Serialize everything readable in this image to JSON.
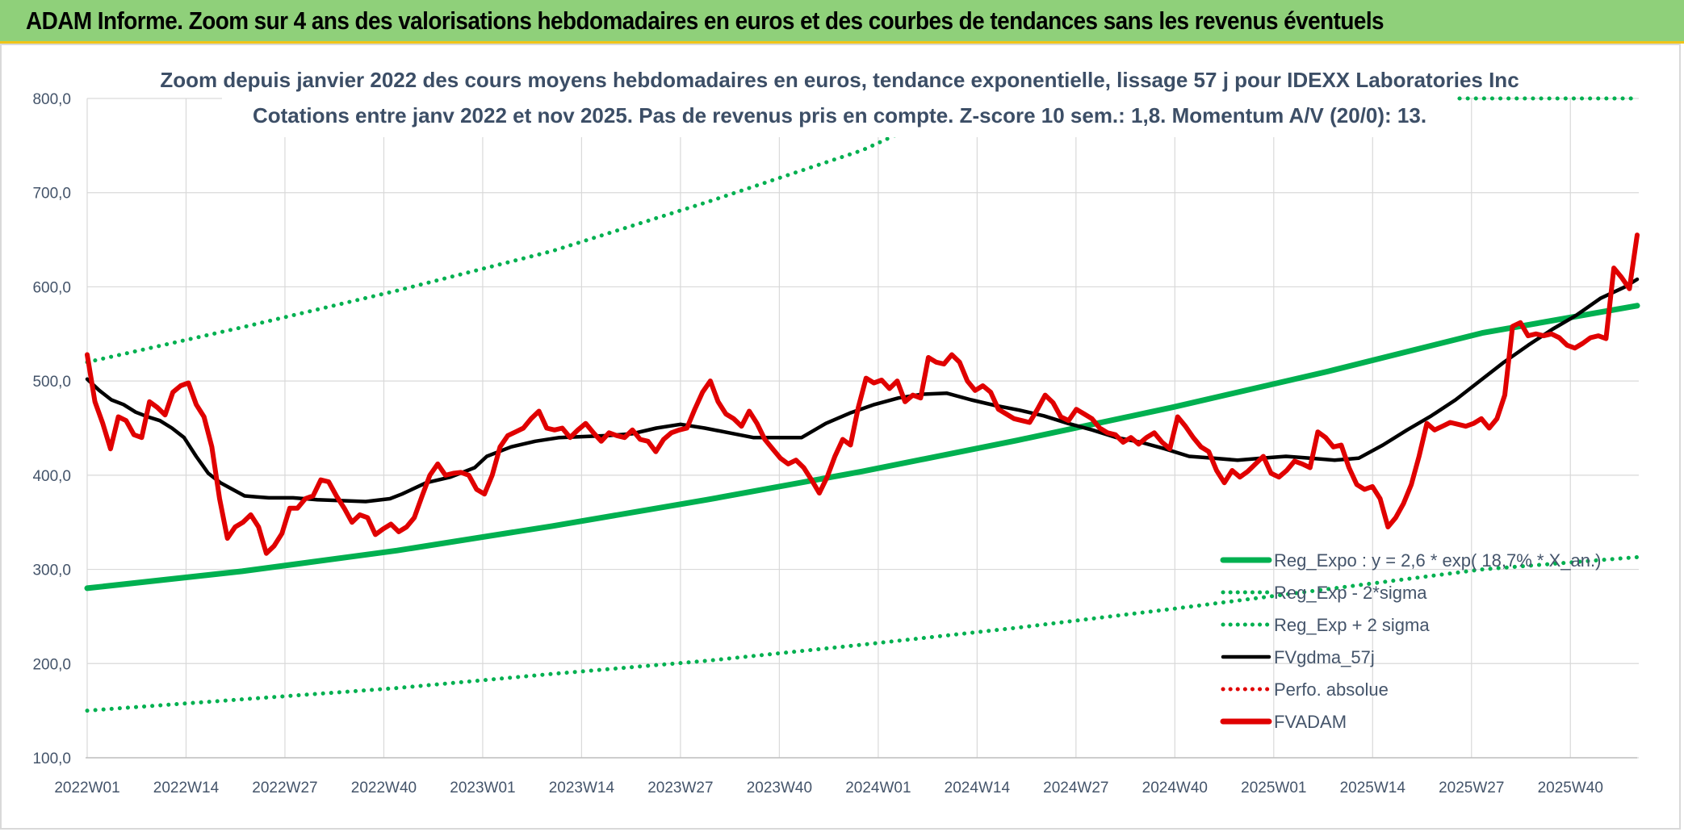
{
  "header": {
    "title": "ADAM Informe. Zoom sur 4 ans des valorisations hebdomadaires en euros et des courbes de tendances sans les revenus éventuels"
  },
  "chart_data": {
    "type": "line",
    "title_line1": "Zoom depuis janvier 2022 des cours moyens hebdomadaires en euros, tendance exponentielle, lissage 57 j pour IDEXX Laboratories Inc",
    "title_line2": "Cotations entre janv 2022 et nov 2025. Pas de revenus pris en compte. Z-score 10 sem.: 1,8. Momentum A/V (20/0): 13.",
    "ylim": [
      100,
      800
    ],
    "yticks": [
      "100,0",
      "200,0",
      "300,0",
      "400,0",
      "500,0",
      "600,0",
      "700,0",
      "800,0"
    ],
    "ytick_values": [
      100,
      200,
      300,
      400,
      500,
      600,
      700,
      800
    ],
    "xtick_labels": [
      "2022W01",
      "2022W14",
      "2022W27",
      "2022W40",
      "2023W01",
      "2023W14",
      "2023W27",
      "2023W40",
      "2024W01",
      "2024W14",
      "2024W27",
      "2024W40",
      "2025W01",
      "2025W14",
      "2025W27",
      "2025W40"
    ],
    "x_range_weeks": [
      0,
      204
    ],
    "series": [
      {
        "name": "Reg_Expo : y = 2,6 * exp( 18,7% * X_an.)",
        "color": "#00b050",
        "style": "solid",
        "points": [
          [
            0,
            280
          ],
          [
            26,
            298
          ],
          [
            52,
            320
          ],
          [
            78,
            346
          ],
          [
            104,
            374
          ],
          [
            130,
            404
          ],
          [
            156,
            437
          ],
          [
            182,
            472
          ],
          [
            208,
            510
          ],
          [
            234,
            551
          ],
          [
            260,
            580
          ]
        ]
      },
      {
        "name": "Reg_Exp - 2*sigma",
        "color": "#00b050",
        "style": "dotted",
        "points": [
          [
            0,
            150
          ],
          [
            26,
            162
          ],
          [
            52,
            174
          ],
          [
            78,
            189
          ],
          [
            104,
            203
          ],
          [
            130,
            220
          ],
          [
            156,
            238
          ],
          [
            182,
            258
          ],
          [
            208,
            279
          ],
          [
            234,
            300
          ],
          [
            260,
            313
          ]
        ]
      },
      {
        "name": "Reg_Exp + 2 sigma",
        "color": "#00b050",
        "style": "dotted",
        "points": [
          [
            0,
            520
          ],
          [
            26,
            557
          ],
          [
            52,
            596
          ],
          [
            78,
            638
          ],
          [
            104,
            690
          ],
          [
            130,
            745
          ],
          [
            138,
            768
          ]
        ]
      },
      {
        "name": "FVgdma_57j",
        "color": "#000000",
        "style": "solid",
        "points": [
          [
            0,
            502
          ],
          [
            2,
            490
          ],
          [
            4,
            480
          ],
          [
            6,
            475
          ],
          [
            8,
            467
          ],
          [
            10,
            462
          ],
          [
            12,
            458
          ],
          [
            14,
            450
          ],
          [
            16,
            440
          ],
          [
            18,
            420
          ],
          [
            20,
            402
          ],
          [
            22,
            392
          ],
          [
            24,
            385
          ],
          [
            26,
            378
          ],
          [
            28,
            377
          ],
          [
            30,
            376
          ],
          [
            34,
            376
          ],
          [
            38,
            374
          ],
          [
            42,
            373
          ],
          [
            46,
            372
          ],
          [
            50,
            375
          ],
          [
            52,
            380
          ],
          [
            56,
            392
          ],
          [
            60,
            398
          ],
          [
            64,
            408
          ],
          [
            66,
            420
          ],
          [
            70,
            430
          ],
          [
            74,
            436
          ],
          [
            78,
            440
          ],
          [
            82,
            441
          ],
          [
            86,
            442
          ],
          [
            90,
            444
          ],
          [
            94,
            450
          ],
          [
            98,
            454
          ],
          [
            102,
            450
          ],
          [
            106,
            445
          ],
          [
            110,
            440
          ],
          [
            114,
            440
          ],
          [
            118,
            440
          ],
          [
            122,
            455
          ],
          [
            126,
            466
          ],
          [
            130,
            475
          ],
          [
            134,
            482
          ],
          [
            138,
            486
          ],
          [
            142,
            487
          ],
          [
            146,
            480
          ],
          [
            150,
            474
          ],
          [
            154,
            469
          ],
          [
            158,
            463
          ],
          [
            162,
            455
          ],
          [
            166,
            448
          ],
          [
            170,
            440
          ],
          [
            174,
            435
          ],
          [
            178,
            428
          ],
          [
            182,
            420
          ],
          [
            186,
            418
          ],
          [
            190,
            416
          ],
          [
            194,
            418
          ],
          [
            198,
            420
          ],
          [
            202,
            418
          ],
          [
            206,
            416
          ],
          [
            210,
            418
          ],
          [
            214,
            432
          ],
          [
            218,
            448
          ],
          [
            222,
            463
          ],
          [
            226,
            480
          ],
          [
            230,
            500
          ],
          [
            234,
            520
          ],
          [
            238,
            538
          ],
          [
            242,
            555
          ],
          [
            246,
            570
          ],
          [
            250,
            588
          ],
          [
            254,
            600
          ],
          [
            256,
            608
          ]
        ]
      },
      {
        "name": "Perfo. absolue",
        "color": "#e00000",
        "style": "dotted",
        "points": []
      },
      {
        "name": "FVADAM",
        "color": "#e00000",
        "style": "solid",
        "points": [
          [
            0,
            528
          ],
          [
            1,
            478
          ],
          [
            2,
            455
          ],
          [
            3,
            428
          ],
          [
            4,
            462
          ],
          [
            5,
            458
          ],
          [
            6,
            443
          ],
          [
            7,
            440
          ],
          [
            8,
            478
          ],
          [
            9,
            472
          ],
          [
            10,
            464
          ],
          [
            11,
            488
          ],
          [
            12,
            495
          ],
          [
            13,
            498
          ],
          [
            14,
            475
          ],
          [
            15,
            462
          ],
          [
            16,
            430
          ],
          [
            17,
            375
          ],
          [
            18,
            333
          ],
          [
            19,
            345
          ],
          [
            20,
            350
          ],
          [
            21,
            358
          ],
          [
            22,
            345
          ],
          [
            23,
            317
          ],
          [
            24,
            325
          ],
          [
            25,
            338
          ],
          [
            26,
            365
          ],
          [
            27,
            365
          ],
          [
            28,
            375
          ],
          [
            29,
            378
          ],
          [
            30,
            395
          ],
          [
            31,
            393
          ],
          [
            32,
            378
          ],
          [
            33,
            365
          ],
          [
            34,
            350
          ],
          [
            35,
            358
          ],
          [
            36,
            355
          ],
          [
            37,
            337
          ],
          [
            38,
            343
          ],
          [
            39,
            348
          ],
          [
            40,
            340
          ],
          [
            41,
            345
          ],
          [
            42,
            355
          ],
          [
            43,
            378
          ],
          [
            44,
            400
          ],
          [
            45,
            412
          ],
          [
            46,
            400
          ],
          [
            47,
            402
          ],
          [
            48,
            403
          ],
          [
            49,
            400
          ],
          [
            50,
            385
          ],
          [
            51,
            380
          ],
          [
            52,
            400
          ],
          [
            53,
            430
          ],
          [
            54,
            442
          ],
          [
            55,
            446
          ],
          [
            56,
            450
          ],
          [
            57,
            460
          ],
          [
            58,
            468
          ],
          [
            59,
            450
          ],
          [
            60,
            448
          ],
          [
            61,
            450
          ],
          [
            62,
            440
          ],
          [
            63,
            448
          ],
          [
            64,
            455
          ],
          [
            65,
            445
          ],
          [
            66,
            436
          ],
          [
            67,
            445
          ],
          [
            68,
            442
          ],
          [
            69,
            440
          ],
          [
            70,
            448
          ],
          [
            71,
            438
          ],
          [
            72,
            436
          ],
          [
            73,
            425
          ],
          [
            74,
            438
          ],
          [
            75,
            445
          ],
          [
            76,
            448
          ],
          [
            77,
            450
          ],
          [
            78,
            470
          ],
          [
            79,
            488
          ],
          [
            80,
            500
          ],
          [
            81,
            478
          ],
          [
            82,
            465
          ],
          [
            83,
            460
          ],
          [
            84,
            452
          ],
          [
            85,
            468
          ],
          [
            86,
            455
          ],
          [
            87,
            438
          ],
          [
            88,
            428
          ],
          [
            89,
            418
          ],
          [
            90,
            412
          ],
          [
            91,
            416
          ],
          [
            92,
            408
          ],
          [
            93,
            395
          ],
          [
            94,
            381
          ],
          [
            95,
            398
          ],
          [
            96,
            420
          ],
          [
            97,
            438
          ],
          [
            98,
            432
          ],
          [
            99,
            472
          ],
          [
            100,
            503
          ],
          [
            101,
            498
          ],
          [
            102,
            501
          ],
          [
            103,
            492
          ],
          [
            104,
            500
          ],
          [
            105,
            478
          ],
          [
            106,
            485
          ],
          [
            107,
            482
          ],
          [
            108,
            525
          ],
          [
            109,
            520
          ],
          [
            110,
            518
          ],
          [
            111,
            528
          ],
          [
            112,
            520
          ],
          [
            113,
            500
          ],
          [
            114,
            490
          ],
          [
            115,
            495
          ],
          [
            116,
            488
          ],
          [
            117,
            470
          ],
          [
            118,
            465
          ],
          [
            119,
            460
          ],
          [
            120,
            458
          ],
          [
            121,
            456
          ],
          [
            122,
            470
          ],
          [
            123,
            485
          ],
          [
            124,
            477
          ],
          [
            125,
            462
          ],
          [
            126,
            458
          ],
          [
            127,
            470
          ],
          [
            128,
            465
          ],
          [
            129,
            460
          ],
          [
            130,
            450
          ],
          [
            131,
            445
          ],
          [
            132,
            443
          ],
          [
            133,
            435
          ],
          [
            134,
            440
          ],
          [
            135,
            433
          ],
          [
            136,
            440
          ],
          [
            137,
            445
          ],
          [
            138,
            435
          ],
          [
            139,
            428
          ],
          [
            140,
            462
          ],
          [
            141,
            452
          ],
          [
            142,
            440
          ],
          [
            143,
            430
          ],
          [
            144,
            425
          ],
          [
            145,
            405
          ],
          [
            146,
            392
          ],
          [
            147,
            405
          ],
          [
            148,
            398
          ],
          [
            149,
            404
          ],
          [
            150,
            412
          ],
          [
            151,
            420
          ],
          [
            152,
            402
          ],
          [
            153,
            398
          ],
          [
            154,
            405
          ],
          [
            155,
            415
          ],
          [
            156,
            412
          ],
          [
            157,
            408
          ],
          [
            158,
            446
          ],
          [
            159,
            440
          ],
          [
            160,
            430
          ],
          [
            161,
            432
          ],
          [
            162,
            408
          ],
          [
            163,
            390
          ],
          [
            164,
            385
          ],
          [
            165,
            388
          ],
          [
            166,
            375
          ],
          [
            167,
            345
          ],
          [
            168,
            355
          ],
          [
            169,
            370
          ],
          [
            170,
            390
          ],
          [
            171,
            420
          ],
          [
            172,
            455
          ],
          [
            173,
            448
          ],
          [
            174,
            452
          ],
          [
            175,
            456
          ],
          [
            176,
            454
          ],
          [
            177,
            452
          ],
          [
            178,
            455
          ],
          [
            179,
            460
          ],
          [
            180,
            450
          ],
          [
            181,
            460
          ],
          [
            182,
            485
          ],
          [
            183,
            558
          ],
          [
            184,
            562
          ],
          [
            185,
            548
          ],
          [
            186,
            550
          ],
          [
            187,
            548
          ],
          [
            188,
            550
          ],
          [
            189,
            546
          ],
          [
            190,
            538
          ],
          [
            191,
            535
          ],
          [
            192,
            540
          ],
          [
            193,
            546
          ],
          [
            194,
            548
          ],
          [
            195,
            545
          ],
          [
            196,
            620
          ],
          [
            197,
            610
          ],
          [
            198,
            598
          ],
          [
            199,
            655
          ]
        ]
      }
    ]
  }
}
